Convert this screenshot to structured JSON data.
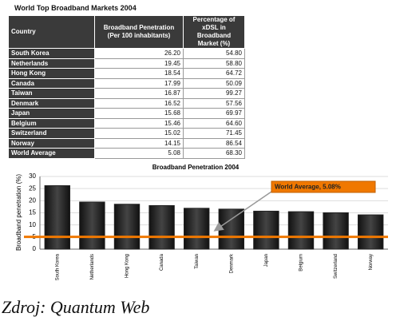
{
  "table": {
    "title": "World Top Broadband Markets  2004",
    "header": [
      "Country",
      "Broadband Penetration (Per 100 inhabitants)",
      "Percentage of xDSL in Broadband Market (%)"
    ],
    "rows": [
      [
        "South Korea",
        "26.20",
        "54.80"
      ],
      [
        "Netherlands",
        "19.45",
        "58.80"
      ],
      [
        "Hong Kong",
        "18.54",
        "64.72"
      ],
      [
        "Canada",
        "17.99",
        "50.09"
      ],
      [
        "Taiwan",
        "16.87",
        "99.27"
      ],
      [
        "Denmark",
        "16.52",
        "57.56"
      ],
      [
        "Japan",
        "15.68",
        "69.97"
      ],
      [
        "Belgium",
        "15.46",
        "64.60"
      ],
      [
        "Switzerland",
        "15.02",
        "71.45"
      ],
      [
        "Norway",
        "14.15",
        "86.54"
      ],
      [
        "World Average",
        "5.08",
        "68.30"
      ]
    ]
  },
  "chart_data": {
    "type": "bar",
    "title": "Broadband Penetration 2004",
    "y_label": "Broadband penetration (%)",
    "categories": [
      "South Korea",
      "Netherlands",
      "Hong Kong",
      "Canada",
      "Taiwan",
      "Denmark",
      "Japan",
      "Belgium",
      "Switzerland",
      "Norway"
    ],
    "values": [
      26.2,
      19.45,
      18.54,
      17.99,
      16.87,
      16.52,
      15.68,
      15.46,
      15.02,
      14.15
    ],
    "color": "#222222",
    "ylim": [
      0,
      30
    ],
    "yticks": [
      0,
      5,
      10,
      15,
      20,
      25,
      30
    ],
    "grid": true,
    "reference_line": {
      "value": 5.08,
      "label": "World Average, 5.08%",
      "color": "#f07800"
    }
  },
  "source": "Zdroj: Quantum Web"
}
